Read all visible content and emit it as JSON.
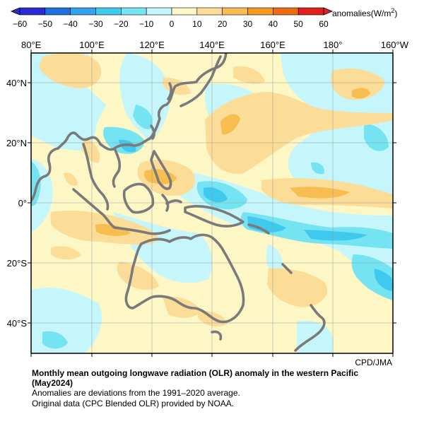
{
  "colorbar": {
    "ticks": [
      "−60",
      "−50",
      "−40",
      "−30",
      "−20",
      "−10",
      "0",
      "10",
      "20",
      "30",
      "40",
      "50",
      "60"
    ],
    "colors": [
      "#2a2ad6",
      "#1f6fe0",
      "#2fa3ec",
      "#3fc9ee",
      "#75e4f2",
      "#c4f6fb",
      "#fdf7c6",
      "#fbdd98",
      "#f8bd50",
      "#f59a23",
      "#ef6a14",
      "#e0201a"
    ],
    "unit_prefix": "anomalies(W/m",
    "unit_sup": "2",
    "unit_suffix": ")"
  },
  "map": {
    "lon_labels": [
      "80°E",
      "100°E",
      "120°E",
      "140°E",
      "160°E",
      "180°",
      "160°W"
    ],
    "lat_labels": [
      "40°N",
      "20°N",
      "0°",
      "20°S",
      "40°S"
    ],
    "colors": {
      "background": "#fdf7c6",
      "neg10": "#c4f6fb",
      "neg20": "#75e4f2",
      "neg30": "#3fc9ee",
      "neg40": "#2fa3ec",
      "pos10": "#fbdd98",
      "pos20": "#f8bd50",
      "coast": "#7a7a7a",
      "grid": "#9a9a9a"
    }
  },
  "credit": "CPD/JMA",
  "caption": {
    "title_line1": "Monthly mean outgoing longwave radiation (OLR) anomaly in the western Pacific",
    "title_line2": "(May2024)",
    "line3": "Anomalies are deviations from the 1991–2020 average.",
    "line4": "Original data (CPC Blended OLR) provided by NOAA."
  }
}
